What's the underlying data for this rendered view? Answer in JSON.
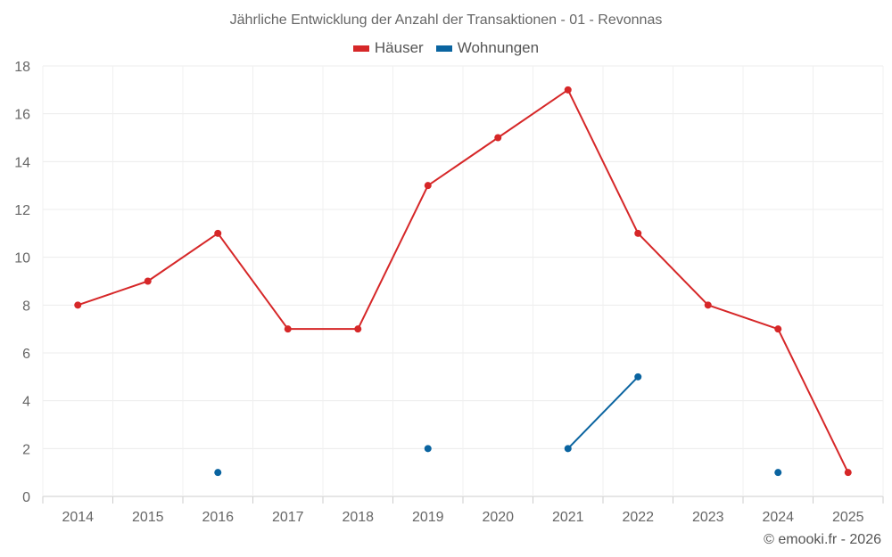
{
  "chart_data": {
    "type": "line",
    "title": "Jährliche Entwicklung der Anzahl der Transaktionen - 01 - Revonnas",
    "xlabel": "",
    "ylabel": "",
    "categories": [
      "2014",
      "2015",
      "2016",
      "2017",
      "2018",
      "2019",
      "2020",
      "2021",
      "2022",
      "2023",
      "2024",
      "2025"
    ],
    "ylim": [
      0,
      18
    ],
    "yticks": [
      0,
      2,
      4,
      6,
      8,
      10,
      12,
      14,
      16,
      18
    ],
    "grid": true,
    "legend_position": "top-center",
    "series": [
      {
        "name": "Häuser",
        "color": "#d62728",
        "values": [
          8,
          9,
          11,
          7,
          7,
          13,
          15,
          17,
          11,
          8,
          7,
          1
        ]
      },
      {
        "name": "Wohnungen",
        "color": "#0a64a0",
        "values": [
          null,
          null,
          1,
          null,
          null,
          2,
          null,
          2,
          5,
          null,
          1,
          null
        ]
      }
    ]
  },
  "credit": "© emooki.fr - 2026"
}
